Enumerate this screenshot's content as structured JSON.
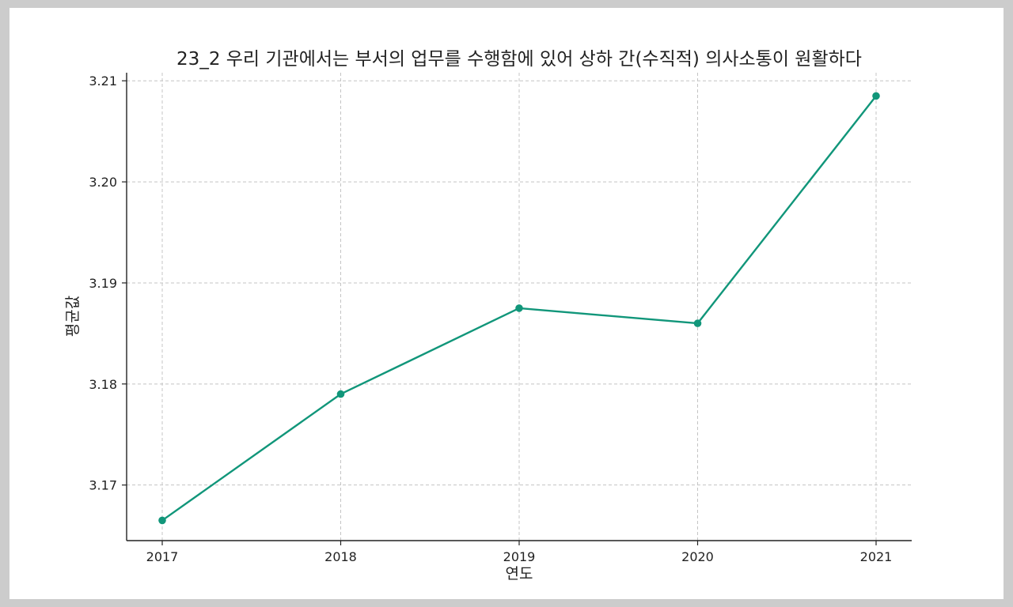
{
  "chart_data": {
    "type": "line",
    "title": "23_2 우리 기관에서는 부서의 업무를 수행함에 있어 상하 간(수직적) 의사소통이 원활하다",
    "xlabel": "연도",
    "ylabel": "평균값",
    "categories": [
      "2017",
      "2018",
      "2019",
      "2020",
      "2021"
    ],
    "series": [
      {
        "values": [
          3.1665,
          3.179,
          3.1875,
          3.186,
          3.2085
        ],
        "color": "#11967a"
      }
    ],
    "yticks": [
      3.17,
      3.18,
      3.19,
      3.2,
      3.21
    ],
    "ytick_labels": [
      "3.17",
      "3.18",
      "3.19",
      "3.20",
      "3.21"
    ],
    "ylim": [
      3.1645,
      3.2108
    ],
    "grid": true,
    "grid_style": "dashed",
    "legend": "none"
  }
}
